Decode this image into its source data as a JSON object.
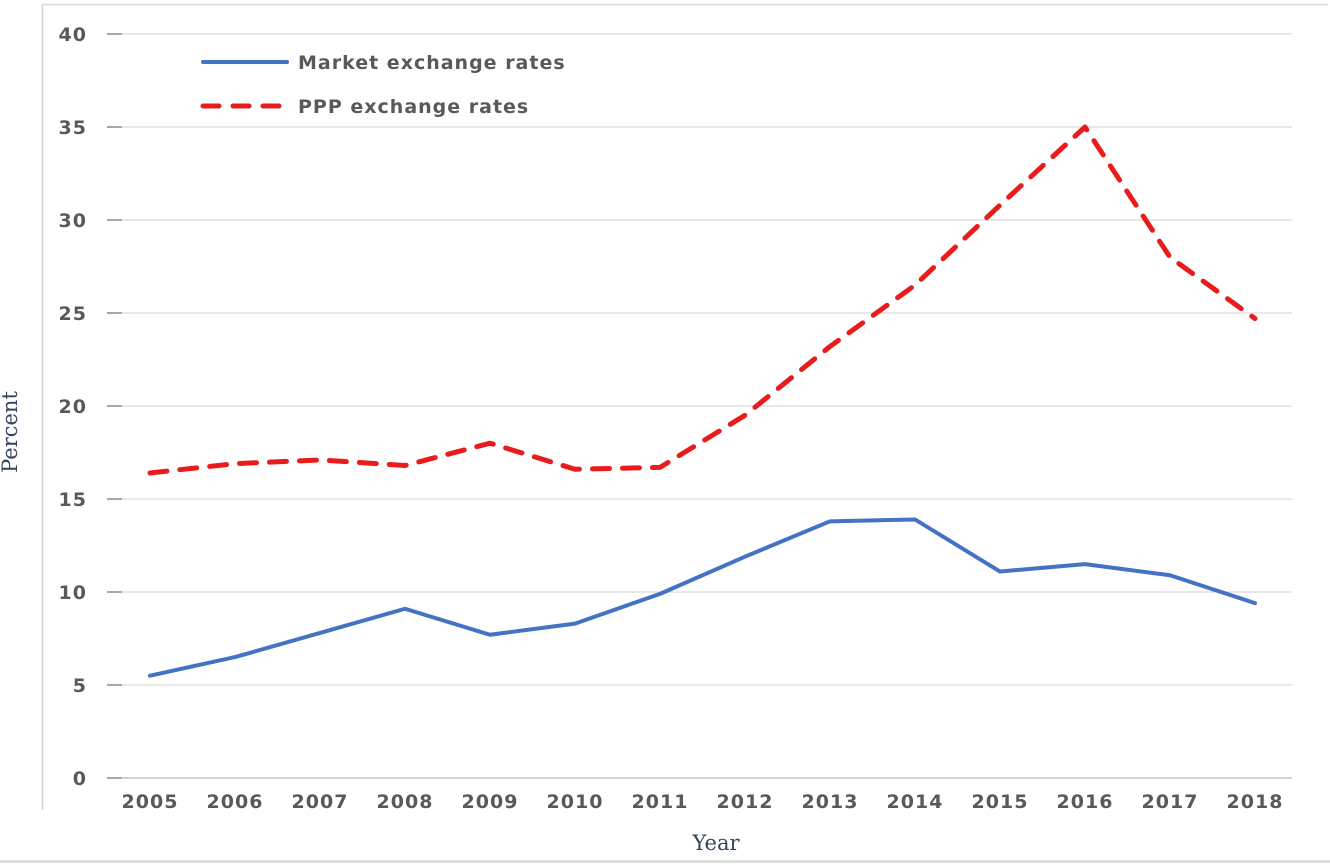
{
  "chart_data": {
    "type": "line",
    "title": "",
    "xlabel": "Year",
    "ylabel": "Percent",
    "categories": [
      "2005",
      "2006",
      "2007",
      "2008",
      "2009",
      "2010",
      "2011",
      "2012",
      "2013",
      "2014",
      "2015",
      "2016",
      "2017",
      "2018"
    ],
    "series": [
      {
        "name": "Market exchange rates",
        "style": "solid",
        "color": "#4472c4",
        "values": [
          5.5,
          6.5,
          7.8,
          9.1,
          7.7,
          8.3,
          9.9,
          11.9,
          13.8,
          13.9,
          11.1,
          11.5,
          10.9,
          9.4
        ]
      },
      {
        "name": "PPP exchange rates",
        "style": "dashed",
        "color": "#e81c1c",
        "values": [
          16.4,
          16.9,
          17.1,
          16.8,
          18.0,
          16.6,
          16.7,
          19.5,
          23.2,
          26.5,
          30.8,
          35.0,
          28.0,
          24.7
        ]
      }
    ],
    "ylim": [
      0,
      40
    ],
    "ytick_step": 5,
    "yticks": [
      "0",
      "5",
      "10",
      "15",
      "20",
      "25",
      "30",
      "35",
      "40"
    ],
    "grid": true,
    "legend_position": "top-left-inside",
    "colors": {
      "gridline": "#d9d9d9",
      "axis_line": "#c3c3c3",
      "tick_stub": "#a8a8a8",
      "chart_border": "#d2d2d2",
      "tick_label": "#595959",
      "axis_title": "#33465e",
      "bottom_rule": "#d6dbd7"
    }
  }
}
